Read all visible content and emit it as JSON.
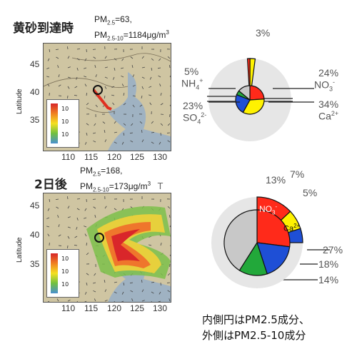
{
  "panel_top": {
    "title": "黄砂到達時",
    "pm25_label": "PM",
    "pm25_sub": "2.5",
    "pm25_value": "=63,",
    "pm10_label": "PM",
    "pm10_sub": "2.5-10",
    "pm10_value": "=1184μg/m",
    "pm10_unit_sup": "3"
  },
  "panel_bottom": {
    "title": "2日後",
    "pm25_label": "PM",
    "pm25_sub": "2.5",
    "pm25_value": "=168,",
    "pm10_label": "PM",
    "pm10_sub": "2.5-10",
    "pm10_value": "=173μg/m",
    "pm10_unit_sup": "3",
    "extra": "T"
  },
  "map_axes": {
    "ylabel": "Latitude",
    "lat_ticks": [
      "45",
      "40",
      "35"
    ],
    "lon_ticks": [
      "110",
      "115",
      "120",
      "125",
      "130"
    ],
    "legend_ticks": [
      "10",
      "10",
      "10"
    ]
  },
  "footnote": {
    "line1": "内側円はPM2.5成分、",
    "line2": "外側はPM2.5-10成分"
  },
  "colors": {
    "no3": "#ff2a1a",
    "ca": "#fff200",
    "so4": "#1e4fd6",
    "nh4": "#22a83a",
    "other": "#c8c8c8",
    "outer_ring": "#e6e6e6",
    "map_land": "#cfc5a2",
    "map_sea": "#9fb2c2"
  },
  "chart_data": [
    {
      "type": "pie",
      "title": "",
      "inner_labels": [
        {
          "value": "5%",
          "label": "NH",
          "sub": "4",
          "sup": "+"
        },
        {
          "value": "23%",
          "label": "SO",
          "sub": "4",
          "sup": "2-"
        },
        {
          "value": "24%",
          "label": "NO",
          "sub": "3",
          "sup": "-"
        },
        {
          "value": "34%",
          "label": "Ca",
          "sub": "",
          "sup": "2+"
        }
      ],
      "outer_labels": [
        {
          "value": "3%"
        }
      ],
      "inner_slices": [
        {
          "name": "NO3-",
          "value": 24
        },
        {
          "name": "Ca2+",
          "value": 34
        },
        {
          "name": "SO42-",
          "value": 23
        },
        {
          "name": "NH4+",
          "value": 5
        },
        {
          "name": "other",
          "value": 14
        }
      ],
      "outer_slices": [
        {
          "name": "NO3-",
          "value": 1
        },
        {
          "name": "Ca2+",
          "value": 2
        }
      ]
    },
    {
      "type": "pie",
      "title": "",
      "slice_labels": [
        {
          "text": "NO",
          "sub": "3",
          "sup": "-"
        },
        {
          "text": "Ca",
          "sub": "",
          "sup": "2+"
        }
      ],
      "outer_values": [
        "13%",
        "7%",
        "5%"
      ],
      "inner_values": [
        "27%",
        "18%",
        "14%"
      ],
      "inner_slices": [
        {
          "name": "NO3-",
          "value": 27
        },
        {
          "name": "SO42-",
          "value": 18
        },
        {
          "name": "NH4+",
          "value": 14
        },
        {
          "name": "other",
          "value": 41
        }
      ],
      "outer_slices": [
        {
          "name": "NO3-",
          "value": 13
        },
        {
          "name": "Ca2+",
          "value": 7
        },
        {
          "name": "SO42-",
          "value": 5
        }
      ]
    }
  ]
}
